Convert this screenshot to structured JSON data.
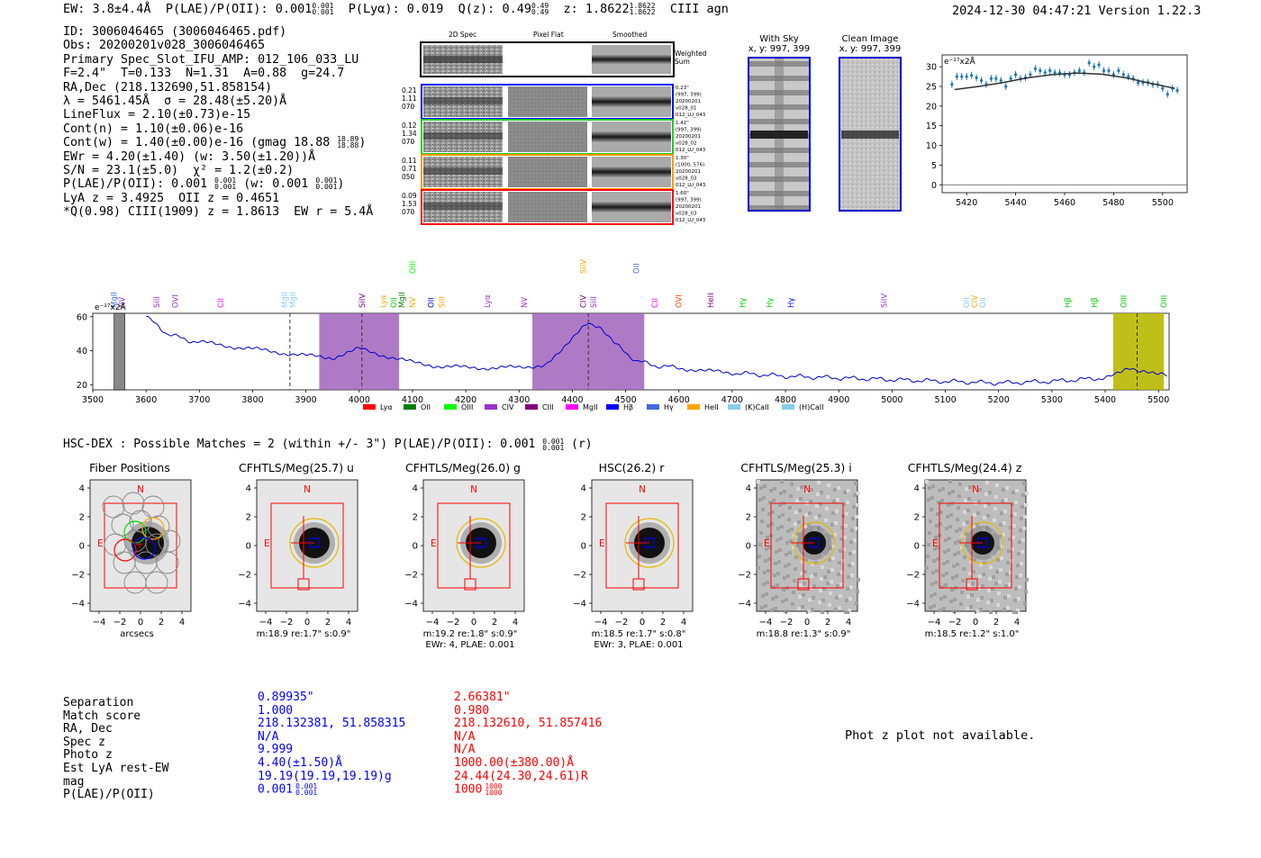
{
  "header": {
    "ew": "EW: 3.8±4.4Å",
    "plae_label": "P(LAE)/P(OII): 0.001",
    "plae_hi": "0.001",
    "plae_lo": "0.001",
    "plya": "P(Lyα): 0.019",
    "q_label": "Q(z): 0.49",
    "q_hi": "0.49",
    "q_lo": "0.49",
    "z_label": "z: 1.8622",
    "z_hi": "1.8622",
    "z_lo": "1.8622",
    "tag": "CIII  agn",
    "timestamp": "2024-12-30 04:47:21  Version 1.22.3"
  },
  "info": {
    "id": "ID: 3006046465 (3006046465.pdf)",
    "obs": "Obs: 20200201v028_3006046465",
    "primary": "Primary Spec_Slot_IFU_AMP: 012_106_033_LU",
    "fit": "F=2.4\"  T=0.133  N=1.31  A=0.88  g=24.7",
    "radec": "RA,Dec (218.132690,51.858154)",
    "lambda": "λ = 5461.45Å  σ = 28.48(±5.20)Å",
    "lineflux": "LineFlux = 2.10(±0.73)e-15",
    "contn": "Cont(n) = 1.10(±0.06)e-16",
    "contw": "Cont(w) = 1.40(±0.00)e-16 (gmag 18.88",
    "contw_hi": "18.89",
    "contw_lo": "18.88",
    "contw_end": ")",
    "ewr": "EWr = 4.20(±1.40) (w: 3.50(±1.20))Å",
    "sn": "S/N = 23.1(±5.0)  χ² = 1.2(±0.2)",
    "plae": "P(LAE)/P(OII): 0.001",
    "plae_hi": "0.001",
    "plae_lo": "0.001",
    "plae_w": "(w: 0.001",
    "plae_w_hi": "0.001",
    "plae_w_lo": "0.001",
    "plae_w_end": ")",
    "lya": "LyA z = 3.4925  OII z = 0.4651",
    "q": "*Q(0.98) CIII(1909) z = 1.8613  EW r = 5.4Å"
  },
  "cutouts": {
    "col_headers": [
      "2D Spec",
      "Pixel Flat",
      "Smoothed"
    ],
    "weighted_sum": "Weighted Sum",
    "fibers": [
      {
        "left": [
          "0.21",
          "1.11",
          "070"
        ],
        "right": [
          "0.23\"",
          "(997, 399)",
          "20200201",
          "v028_01",
          "012_LU_043"
        ],
        "color": "#0000ff"
      },
      {
        "left": [
          "0.12",
          "1.34",
          "070"
        ],
        "right": [
          "1.42\"",
          "(997, 399)",
          "20200201",
          "v028_02",
          "012_LU_043"
        ],
        "color": "#22cc22"
      },
      {
        "left": [
          "0.11",
          "0.71",
          "050"
        ],
        "right": [
          "1.30\"",
          "(1000, 576)",
          "20200201",
          "v028_03",
          "012_LU_043"
        ],
        "color": "#ff9900"
      },
      {
        "left": [
          "0.09",
          "1.53",
          "070"
        ],
        "right": [
          "1.60\"",
          "(997, 399)",
          "20200201",
          "v028_03",
          "012_LU_043"
        ],
        "color": "#ff0000"
      }
    ]
  },
  "sky": {
    "with_sky_title": "With Sky",
    "with_sky_xy": "x, y: 997, 399",
    "clean_title": "Clean Image",
    "clean_xy": "x, y: 997, 399"
  },
  "zoom_plot": {
    "ylabel": "e⁻¹⁷x2Å",
    "xticks": [
      "5420",
      "5440",
      "5460",
      "5480",
      "5500"
    ],
    "yticks": [
      "0",
      "5",
      "10",
      "15",
      "20",
      "25",
      "30"
    ]
  },
  "spectrum": {
    "ylabel": "e⁻¹⁷x2Å",
    "xticks": [
      "3500",
      "3600",
      "3700",
      "3800",
      "3900",
      "4000",
      "4100",
      "4200",
      "4300",
      "4400",
      "4500",
      "4600",
      "4700",
      "4800",
      "4900",
      "5000",
      "5100",
      "5200",
      "5300",
      "5400",
      "5500"
    ],
    "yticks": [
      "20",
      "40",
      "60"
    ],
    "lines_top": [
      "MgII",
      "NV",
      "SiII",
      "OVI",
      "CII",
      "MgII",
      "MgII",
      "SiIV",
      "Lyα",
      "OII",
      "MgII",
      "NV",
      "OII",
      "SiII",
      "Lyα",
      "NV",
      "CIV",
      "SiII",
      "CII",
      "OVI",
      "HeII",
      "Hγ",
      "Hγ",
      "Hγ",
      "SiIV",
      "OII",
      "CIV",
      "OII",
      "Hβ",
      "Hβ",
      "OIII",
      "OIII"
    ],
    "lines_raised": [
      "OIII",
      "SiIV",
      "OII"
    ],
    "legend": [
      "Lyα",
      "OII",
      "OIII",
      "CIV",
      "CIII",
      "MgII",
      "Hβ",
      "Hγ",
      "HeII",
      "(K)CaII",
      "(H)CaII"
    ],
    "legend_colors": [
      "#ff0000",
      "#008000",
      "#00ff00",
      "#9932cc",
      "#800080",
      "#ff00ff",
      "#0000ff",
      "#4169e1",
      "#ffa500",
      "#87ceeb",
      "#87ceeb"
    ]
  },
  "hsc": {
    "title": "HSC-DEX : Possible Matches = 2 (within +/- 3\")  P(LAE)/P(OII): 0.001",
    "title_hi": "0.001",
    "title_lo": "0.001",
    "title_end": "(r)"
  },
  "stamps": [
    {
      "title": "Fiber Positions",
      "caption1": "arcsecs",
      "caption2": ""
    },
    {
      "title": "CFHTLS/Meg(25.7) u",
      "caption1": "m:18.9  re:1.7\"  s:0.9\"",
      "caption2": ""
    },
    {
      "title": "CFHTLS/Meg(26.0) g",
      "caption1": "m:19.2  re:1.8\"  s:0.9\"",
      "caption2": "EWr: 4, PLAE: 0.001"
    },
    {
      "title": "HSC(26.2) r",
      "caption1": "m:18.5  re:1.7\"  s:0.8\"",
      "caption2": "EWr: 3, PLAE: 0.001"
    },
    {
      "title": "CFHTLS/Meg(25.3) i",
      "caption1": "m:18.8  re:1.3\"  s:0.9\"",
      "caption2": ""
    },
    {
      "title": "CFHTLS/Meg(24.4) z",
      "caption1": "m:18.5  re:1.2\"  s:1.0\"",
      "caption2": ""
    }
  ],
  "stamp_axis": {
    "xticks": [
      "−4",
      "−2",
      "0",
      "2",
      "4"
    ],
    "yticks": [
      "4",
      "2",
      "0",
      "−2",
      "−4"
    ],
    "north": "N",
    "east": "E"
  },
  "match_table": {
    "labels": [
      "Separation",
      "Match score",
      "RA, Dec",
      "Spec z",
      "Photo z",
      "Est LyA rest-EW",
      "mag",
      "P(LAE)/P(OII)"
    ],
    "blue": [
      "0.89935\"",
      "1.000",
      "218.132381, 51.858315",
      "N/A",
      "9.999",
      "4.40(±1.50)Å",
      "19.19(19.19,19.19)g",
      "0.001"
    ],
    "blue_plae_hi": "0.001",
    "blue_plae_lo": "0.001",
    "red": [
      "2.66381\"",
      "0.980",
      "218.132610, 51.857416",
      "N/A",
      "N/A",
      "1000.00(±380.00)Å",
      "24.44(24.30,24.61)R",
      "1000"
    ],
    "red_plae_hi": "1000",
    "red_plae_lo": "1000",
    "blue_color": "#0000ff",
    "red_color": "#ff0000"
  },
  "photz_note": "Phot z plot not available.",
  "chart_data": [
    {
      "type": "scatter",
      "title": "",
      "xlabel": "",
      "ylabel": "e-17x2Å",
      "xlim": [
        5410,
        5510
      ],
      "ylim": [
        -2,
        33
      ],
      "x": [
        5414,
        5416,
        5418,
        5420,
        5422,
        5424,
        5426,
        5428,
        5430,
        5432,
        5434,
        5436,
        5438,
        5440,
        5442,
        5444,
        5446,
        5448,
        5450,
        5452,
        5454,
        5456,
        5458,
        5460,
        5462,
        5464,
        5466,
        5468,
        5470,
        5472,
        5474,
        5476,
        5478,
        5480,
        5482,
        5484,
        5486,
        5488,
        5490,
        5492,
        5494,
        5496,
        5498,
        5500,
        5502,
        5504,
        5506
      ],
      "y": [
        25.5,
        27.5,
        27.5,
        27.5,
        27.8,
        27.2,
        26.5,
        25.5,
        27,
        27,
        26.5,
        25,
        27,
        28,
        27,
        27.2,
        28,
        29.5,
        29,
        28.5,
        29,
        28.5,
        28.5,
        28,
        28,
        28.5,
        29,
        28.5,
        31,
        30,
        30.5,
        29,
        29,
        28,
        29,
        28,
        27.5,
        27,
        26,
        26,
        26,
        25.5,
        25.5,
        24.5,
        23,
        24.5,
        24
      ],
      "model_x": [
        5415,
        5425,
        5435,
        5445,
        5455,
        5465,
        5475,
        5485,
        5495,
        5505
      ],
      "model_y": [
        24.2,
        25,
        26,
        27.2,
        28,
        28.4,
        28.1,
        27.2,
        25.8,
        24.5
      ]
    },
    {
      "type": "line",
      "title": "",
      "xlabel": "",
      "ylabel": "e-17x2Å",
      "xlim": [
        3500,
        5520
      ],
      "ylim": [
        17,
        62
      ],
      "x": [
        3600,
        3620,
        3640,
        3660,
        3680,
        3700,
        3750,
        3800,
        3850,
        3900,
        3950,
        4000,
        4050,
        4100,
        4150,
        4200,
        4250,
        4300,
        4350,
        4380,
        4410,
        4430,
        4450,
        4480,
        4520,
        4560,
        4600,
        4650,
        4700,
        4800,
        4900,
        5000,
        5100,
        5200,
        5300,
        5400,
        5430,
        5450,
        5470,
        5500,
        5520
      ],
      "y": [
        60,
        55,
        50,
        48,
        46,
        45,
        43,
        41,
        39,
        37,
        36,
        41,
        37,
        33,
        31,
        30,
        30,
        30,
        32,
        40,
        50,
        57,
        54,
        44,
        34,
        31,
        30,
        28,
        27,
        25,
        24,
        23,
        22,
        21,
        22,
        24,
        27,
        30,
        28,
        26,
        25
      ],
      "highlight_bands": [
        [
          3925,
          4075
        ],
        [
          4325,
          4535
        ],
        [
          5415,
          5510
        ]
      ],
      "dashed_lines": [
        3870,
        4005,
        4430,
        5460
      ]
    }
  ]
}
